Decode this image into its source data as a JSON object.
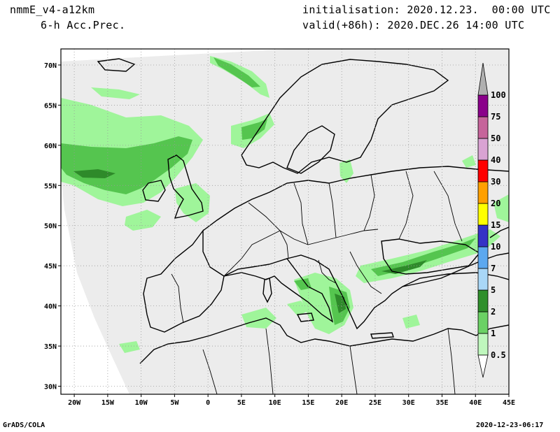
{
  "header": {
    "model": "nmmE_v4-a12km",
    "field": "6-h Acc.Prec.",
    "initialisation_label": "initialisation:",
    "initialisation_value": "2020.12.23.  00:00 UTC",
    "valid_label": "valid(+86h):",
    "valid_value": "2020.DEC.26 14:00 UTC"
  },
  "footer": {
    "left": "GrADS/COLA",
    "right": "2020-12-23-06:17"
  },
  "map": {
    "lon_range": [
      -22,
      45
    ],
    "lat_range": [
      29,
      72
    ],
    "x_ticks": [
      "20W",
      "15W",
      "10W",
      "5W",
      "0",
      "5E",
      "10E",
      "15E",
      "20E",
      "25E",
      "30E",
      "35E",
      "40E",
      "45E"
    ],
    "y_ticks": [
      "70N",
      "65N",
      "60N",
      "55N",
      "50N",
      "45N",
      "40N",
      "35N",
      "30N"
    ],
    "grid": true,
    "background_color": "#ececec",
    "precip_colors": {
      "light": "#9ff59a",
      "medium": "#55c54f",
      "dark": "#2e8a2a"
    }
  },
  "colorbar": {
    "levels": [
      "0.5",
      "1",
      "2",
      "5",
      "7",
      "10",
      "15",
      "20",
      "30",
      "40",
      "50",
      "75",
      "100"
    ],
    "colors": [
      "#bff7bd",
      "#6bd165",
      "#2f8f2c",
      "#a9d7f7",
      "#5ca8ef",
      "#3532c6",
      "#ffff00",
      "#ffa000",
      "#ff0000",
      "#d9a3d3",
      "#c6649b",
      "#8a008a",
      "#b0b0b0"
    ],
    "placement": "right"
  }
}
